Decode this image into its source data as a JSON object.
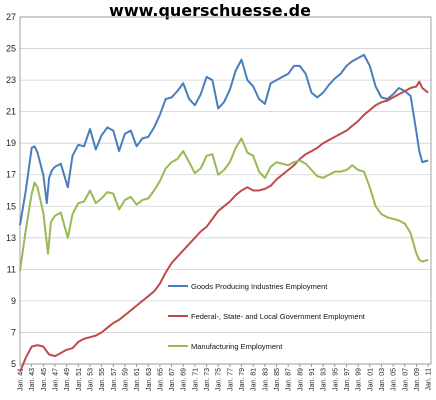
{
  "watermark": "www.querschuesse.de",
  "chart_data": {
    "type": "line",
    "title": "",
    "xlabel": "",
    "ylabel": "",
    "xlim": [
      1941,
      2011.5
    ],
    "ylim": [
      5,
      27
    ],
    "yticks": [
      5,
      7,
      9,
      11,
      13,
      15,
      17,
      19,
      21,
      23,
      25,
      27
    ],
    "xtick_labels": [
      "Jan. 41",
      "Jan. 43",
      "Jan. 45",
      "Jan. 47",
      "Jan. 49",
      "Jan. 51",
      "Jan. 53",
      "Jan. 55",
      "Jan. 57",
      "Jan. 59",
      "Jan. 61",
      "Jan. 63",
      "Jan. 65",
      "Jan. 67",
      "Jan. 69",
      "Jan. 71",
      "Jan. 73",
      "Jan. 75",
      "Jan. 77",
      "Jan. 79",
      "Jan. 81",
      "Jan. 83",
      "Jan. 85",
      "Jan. 87",
      "Jan. 89",
      "Jan. 91",
      "Jan. 93",
      "Jan. 95",
      "Jan. 97",
      "Jan. 99",
      "Jan. 01",
      "Jan. 03",
      "Jan. 05",
      "Jan. 07",
      "Jan. 09",
      "Jan. 11"
    ],
    "grid": true,
    "legend_position": "center-right",
    "series": [
      {
        "name": "Goods Producing Industries Employment",
        "color": "#4a7ebb",
        "x": [
          1941,
          1942,
          1943,
          1943.5,
          1944,
          1945,
          1945.6,
          1946,
          1946.5,
          1947,
          1948,
          1949.2,
          1950,
          1951,
          1952,
          1953,
          1954,
          1955,
          1956,
          1957,
          1958,
          1959,
          1960,
          1961,
          1962,
          1963,
          1964,
          1965,
          1966,
          1967,
          1968,
          1969,
          1970,
          1971,
          1972,
          1973,
          1974,
          1975,
          1976,
          1977,
          1978,
          1979,
          1980,
          1981,
          1982,
          1983,
          1984,
          1985,
          1986,
          1987,
          1988,
          1989,
          1990,
          1991,
          1992,
          1993,
          1994,
          1995,
          1996,
          1997,
          1998,
          1999,
          2000,
          2001,
          2002,
          2003,
          2004,
          2005,
          2006,
          2007,
          2008,
          2009,
          2009.5,
          2010,
          2011
        ],
        "values": [
          13.8,
          16.0,
          18.7,
          18.8,
          18.4,
          17.0,
          15.2,
          16.8,
          17.3,
          17.5,
          17.7,
          16.2,
          18.2,
          18.9,
          18.8,
          19.9,
          18.6,
          19.5,
          20.0,
          19.8,
          18.5,
          19.6,
          19.8,
          18.8,
          19.3,
          19.4,
          20.0,
          20.8,
          21.8,
          21.9,
          22.3,
          22.8,
          21.8,
          21.4,
          22.1,
          23.2,
          23.0,
          21.2,
          21.6,
          22.4,
          23.6,
          24.3,
          23.0,
          22.6,
          21.8,
          21.5,
          22.8,
          23.0,
          23.2,
          23.4,
          23.9,
          23.9,
          23.4,
          22.2,
          21.9,
          22.2,
          22.7,
          23.1,
          23.4,
          23.9,
          24.2,
          24.4,
          24.6,
          23.9,
          22.6,
          21.9,
          21.8,
          22.1,
          22.5,
          22.3,
          22.0,
          19.7,
          18.5,
          17.8,
          17.9
        ]
      },
      {
        "name": "Federal-, State- and Local Government Employment",
        "color": "#be4b48",
        "x": [
          1941,
          1942,
          1943,
          1944,
          1945,
          1946,
          1947,
          1948,
          1949,
          1950,
          1951,
          1952,
          1953,
          1954,
          1955,
          1956,
          1957,
          1958,
          1959,
          1960,
          1961,
          1962,
          1963,
          1964,
          1965,
          1966,
          1967,
          1968,
          1969,
          1970,
          1971,
          1972,
          1973,
          1974,
          1975,
          1976,
          1977,
          1978,
          1979,
          1980,
          1981,
          1982,
          1983,
          1984,
          1985,
          1986,
          1987,
          1988,
          1989,
          1990,
          1991,
          1992,
          1993,
          1994,
          1995,
          1996,
          1997,
          1998,
          1999,
          2000,
          2001,
          2002,
          2003,
          2004,
          2005,
          2006,
          2007,
          2008,
          2009,
          2009.5,
          2010,
          2011
        ],
        "values": [
          4.5,
          5.4,
          6.1,
          6.2,
          6.1,
          5.6,
          5.5,
          5.7,
          5.9,
          6.0,
          6.4,
          6.6,
          6.7,
          6.8,
          7.0,
          7.3,
          7.6,
          7.8,
          8.1,
          8.4,
          8.7,
          9.0,
          9.3,
          9.6,
          10.1,
          10.8,
          11.4,
          11.8,
          12.2,
          12.6,
          13.0,
          13.4,
          13.7,
          14.2,
          14.7,
          15.0,
          15.3,
          15.7,
          16.0,
          16.2,
          16.0,
          16.0,
          16.1,
          16.3,
          16.7,
          17.0,
          17.3,
          17.6,
          18.0,
          18.3,
          18.5,
          18.7,
          19.0,
          19.2,
          19.4,
          19.6,
          19.8,
          20.1,
          20.4,
          20.8,
          21.1,
          21.4,
          21.6,
          21.7,
          21.9,
          22.1,
          22.3,
          22.5,
          22.6,
          22.9,
          22.5,
          22.2
        ]
      },
      {
        "name": "Manufacturing Employment",
        "color": "#98b954",
        "x": [
          1941,
          1942,
          1943,
          1943.5,
          1944,
          1945,
          1945.8,
          1946.3,
          1947,
          1948,
          1949.2,
          1950,
          1951,
          1952,
          1953,
          1954,
          1955,
          1956,
          1957,
          1958,
          1959,
          1960,
          1961,
          1962,
          1963,
          1964,
          1965,
          1966,
          1967,
          1968,
          1969,
          1970,
          1971,
          1972,
          1973,
          1974,
          1975,
          1976,
          1977,
          1978,
          1979,
          1980,
          1981,
          1982,
          1983,
          1984,
          1985,
          1986,
          1987,
          1988,
          1989,
          1990,
          1991,
          1992,
          1993,
          1994,
          1995,
          1996,
          1997,
          1998,
          1999,
          2000,
          2001,
          2002,
          2003,
          2004,
          2005,
          2006,
          2007,
          2008,
          2009,
          2009.5,
          2010,
          2011
        ],
        "values": [
          10.9,
          13.5,
          15.8,
          16.5,
          16.2,
          14.6,
          12.0,
          14.0,
          14.4,
          14.6,
          13.0,
          14.5,
          15.2,
          15.3,
          16.0,
          15.2,
          15.5,
          15.9,
          15.8,
          14.8,
          15.4,
          15.6,
          15.1,
          15.4,
          15.5,
          16.0,
          16.6,
          17.4,
          17.8,
          18.0,
          18.5,
          17.8,
          17.1,
          17.4,
          18.2,
          18.3,
          17.0,
          17.3,
          17.8,
          18.7,
          19.3,
          18.4,
          18.2,
          17.2,
          16.8,
          17.5,
          17.8,
          17.7,
          17.6,
          17.8,
          17.9,
          17.7,
          17.3,
          16.9,
          16.8,
          17.0,
          17.2,
          17.2,
          17.3,
          17.6,
          17.3,
          17.2,
          16.2,
          15.0,
          14.5,
          14.3,
          14.2,
          14.1,
          13.9,
          13.3,
          12.0,
          11.6,
          11.5,
          11.6
        ]
      }
    ]
  }
}
